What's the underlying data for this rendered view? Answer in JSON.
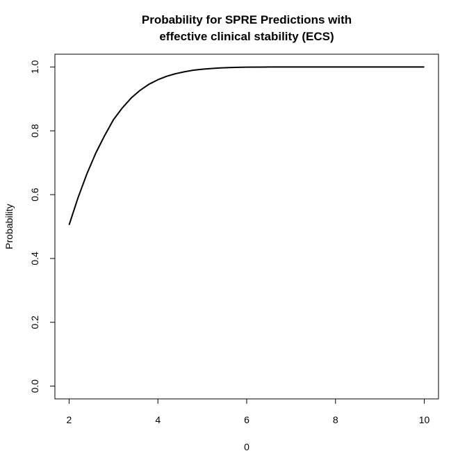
{
  "chart_data": {
    "type": "line",
    "title_line1": "Probability for SPRE Predictions with",
    "title_line2": "effective clinical stability (ECS)",
    "xlabel": "0",
    "ylabel": "Probability",
    "xlim": [
      1.68,
      10.32
    ],
    "ylim": [
      -0.04,
      1.04
    ],
    "x_ticks": [
      2,
      4,
      6,
      8,
      10
    ],
    "y_ticks": [
      0.0,
      0.2,
      0.4,
      0.6,
      0.8,
      1.0
    ],
    "y_tick_labels": [
      "0.0",
      "0.2",
      "0.4",
      "0.6",
      "0.8",
      "1.0"
    ],
    "grid": false,
    "legend": "none",
    "series": [
      {
        "color": "#000000",
        "x": [
          2.0,
          2.2,
          2.4,
          2.6,
          2.8,
          3.0,
          3.2,
          3.4,
          3.6,
          3.8,
          4.0,
          4.2,
          4.4,
          4.6,
          4.8,
          5.0,
          5.2,
          5.4,
          5.6,
          5.8,
          6.0,
          6.5,
          7.0,
          8.0,
          9.0,
          10.0
        ],
        "y": [
          0.505,
          0.59,
          0.665,
          0.73,
          0.785,
          0.835,
          0.872,
          0.903,
          0.927,
          0.946,
          0.96,
          0.971,
          0.979,
          0.985,
          0.99,
          0.993,
          0.995,
          0.997,
          0.998,
          0.999,
          0.9995,
          0.9999,
          1.0,
          1.0,
          1.0,
          1.0
        ]
      }
    ]
  }
}
